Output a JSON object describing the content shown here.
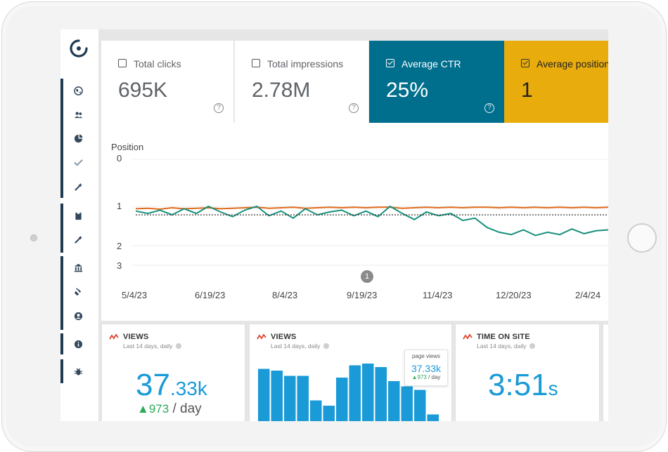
{
  "metrics": [
    {
      "label": "Total clicks",
      "value": "695K",
      "checked": false
    },
    {
      "label": "Total impressions",
      "value": "2.78M",
      "checked": false
    },
    {
      "label": "Average CTR",
      "value": "25%",
      "checked": true,
      "color": "#006f8d"
    },
    {
      "label": "Average position",
      "value": "1",
      "checked": true,
      "color": "#e8ac0c"
    }
  ],
  "nav_icons": [
    "globe-icon",
    "users-icon",
    "chart-pie-icon",
    "check-icon",
    "wand-icon",
    "clipboard-icon",
    "wand-icon",
    "bank-icon",
    "plug-icon",
    "user-circle-icon",
    "info-icon",
    "bug-icon"
  ],
  "chart_data": {
    "type": "line",
    "ylabel": "Position",
    "y_reversed": true,
    "ylim": [
      0,
      3
    ],
    "yticks": [
      "0",
      "1",
      "2",
      "3"
    ],
    "xticks": [
      "5/4/23",
      "6/19/23",
      "8/4/23",
      "9/19/23",
      "11/4/23",
      "12/20/23",
      "2/4/24"
    ],
    "annotation": "1",
    "series": [
      {
        "color": "#e06b1d",
        "values": [
          1.05,
          1.04,
          1.06,
          1.03,
          1.05,
          1.04,
          1.03,
          1.05,
          1.04,
          1.03,
          1.02,
          1.04,
          1.03,
          1.02,
          1.04,
          1.03,
          1.02,
          1.03,
          1.02,
          1.03,
          1.02,
          1.02,
          1.04,
          1.03,
          1.02,
          1.03,
          1.02,
          1.03,
          1.02,
          1.02,
          1.03,
          1.02,
          1.03,
          1.02,
          1.03,
          1.02,
          1.03,
          1.02,
          1.03,
          1.02
        ]
      },
      {
        "color": "#17907c",
        "values": [
          1.1,
          1.15,
          1.08,
          1.18,
          1.05,
          1.15,
          1.0,
          1.12,
          1.22,
          1.08,
          1.0,
          1.2,
          1.1,
          1.25,
          1.05,
          1.18,
          1.12,
          1.08,
          1.2,
          1.1,
          1.22,
          1.0,
          1.15,
          1.28,
          1.12,
          1.2,
          1.15,
          1.3,
          1.25,
          1.45,
          1.55,
          1.6,
          1.5,
          1.62,
          1.55,
          1.6,
          1.48,
          1.58,
          1.52,
          1.5
        ]
      },
      {
        "color": "#333333",
        "dashed": true,
        "values": [
          1.18,
          1.18
        ]
      }
    ]
  },
  "widgets": [
    {
      "title": "VIEWS",
      "subtitle": "Last 14 days, daily",
      "big": "37",
      "big_small": ".33k",
      "rate_up": "▲973",
      "rate_suffix": "/ day"
    },
    {
      "title": "VIEWS",
      "subtitle": "Last 14 days, daily",
      "tooltip": {
        "label": "page views",
        "value": "37.33k",
        "delta": "▲973",
        "delta_suffix": "/ day"
      },
      "chart_data": {
        "type": "bar",
        "values": [
          37,
          36,
          33,
          33,
          19,
          16,
          32,
          39,
          40,
          38,
          30,
          27,
          25,
          11
        ]
      }
    },
    {
      "title": "TIME ON SITE",
      "subtitle": "Last 14 days, daily",
      "big": "3:51",
      "big_small": "s"
    }
  ]
}
